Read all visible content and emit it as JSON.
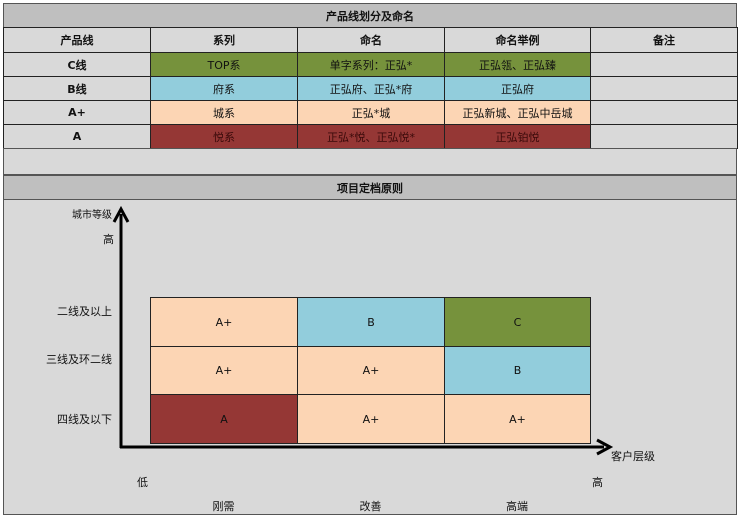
{
  "table": {
    "title": "产品线划分及命名",
    "headers": [
      "产品线",
      "系列",
      "命名",
      "命名举例",
      "备注"
    ],
    "rows": [
      {
        "line": "C线",
        "series": "TOP系",
        "naming": "单字系列：正弘*",
        "example": "正弘瓴、正弘臻",
        "note": "",
        "color": "#76923c"
      },
      {
        "line": "B线",
        "series": "府系",
        "naming": "正弘府、正弘*府",
        "example": "正弘府",
        "note": "",
        "color": "#92cddc"
      },
      {
        "line": "A+",
        "series": "城系",
        "naming": "正弘*城",
        "example": "正弘新城、正弘中岳城",
        "note": "",
        "color": "#fcd5b4"
      },
      {
        "line": "A",
        "series": "悦系",
        "naming": "正弘*悦、正弘悦*",
        "example": "正弘铂悦",
        "note": "",
        "color": "#953735"
      }
    ]
  },
  "matrix": {
    "title": "项目定档原则",
    "y_axis_label": "城市等级",
    "y_high": "高",
    "x_axis_label": "客户层级",
    "x_low": "低",
    "x_high": "高",
    "row_labels": [
      "二线及以上",
      "三线及环二线",
      "四线及以下"
    ],
    "col_labels": [
      "刚需",
      "改善",
      "高端"
    ],
    "cells": [
      [
        {
          "v": "A+",
          "color": "#fcd5b4"
        },
        {
          "v": "B",
          "color": "#92cddc"
        },
        {
          "v": "C",
          "color": "#76923c"
        }
      ],
      [
        {
          "v": "A+",
          "color": "#fcd5b4"
        },
        {
          "v": "A+",
          "color": "#fcd5b4"
        },
        {
          "v": "B",
          "color": "#92cddc"
        }
      ],
      [
        {
          "v": "A",
          "color": "#953735"
        },
        {
          "v": "A+",
          "color": "#fcd5b4"
        },
        {
          "v": "A+",
          "color": "#fcd5b4"
        }
      ]
    ]
  }
}
